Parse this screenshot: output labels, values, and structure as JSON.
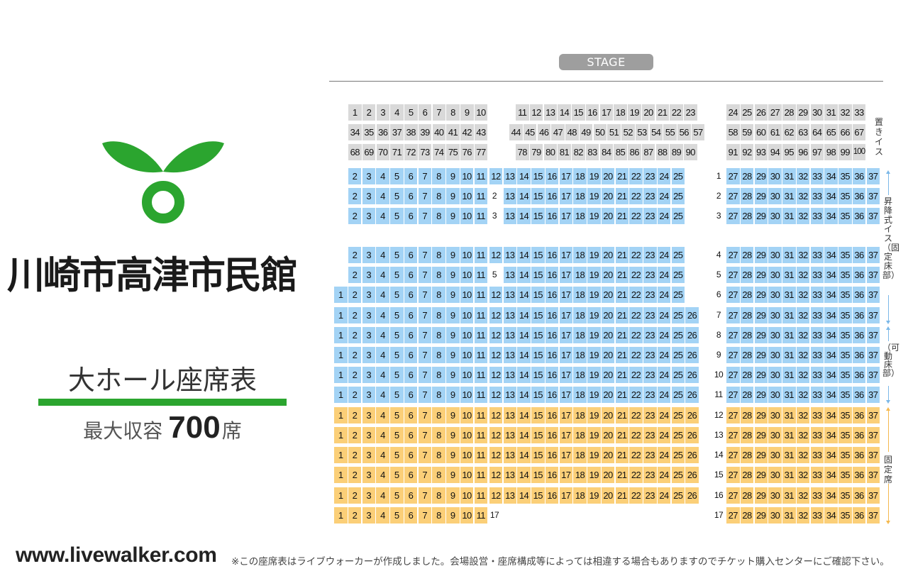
{
  "venue": {
    "name": "川崎市高津市民館",
    "chart_title": "大ホール座席表",
    "capacity_label": "最大収容",
    "capacity_number": "700",
    "capacity_unit": "席"
  },
  "stage_label": "STAGE",
  "legend": {
    "loose": "置きイス",
    "raised": "昇降式イス（固定床部）",
    "movable": "（可動床部）",
    "fixed": "固定席"
  },
  "colors": {
    "loose_seat": "#d9d9d9",
    "raised_seat": "#a3d3f5",
    "fixed_seat": "#fbcf78",
    "logo_green": "#2ba52f",
    "stage": "#9e9e9e"
  },
  "loose_rows": [
    [
      [
        1,
        10
      ],
      [
        11,
        23
      ],
      [
        24,
        33
      ]
    ],
    [
      [
        34,
        43
      ],
      [
        44,
        57
      ],
      [
        58,
        67
      ]
    ],
    [
      [
        68,
        77
      ],
      [
        78,
        90
      ],
      [
        91,
        100
      ]
    ]
  ],
  "rows": [
    {
      "no": "1",
      "type": "raised",
      "left": [
        2,
        11
      ],
      "center": [
        12,
        25
      ],
      "right": [
        27,
        37
      ]
    },
    {
      "no": "2",
      "type": "raised",
      "left": [
        2,
        11
      ],
      "center": [
        13,
        25
      ],
      "right": [
        27,
        37
      ]
    },
    {
      "no": "3",
      "type": "raised",
      "left": [
        2,
        11
      ],
      "center": [
        13,
        25
      ],
      "right": [
        27,
        37
      ]
    },
    {
      "no": "4",
      "type": "raised",
      "left": [
        2,
        11
      ],
      "center": [
        12,
        25
      ],
      "right": [
        27,
        37
      ]
    },
    {
      "no": "5",
      "type": "raised",
      "left": [
        2,
        11
      ],
      "center": [
        13,
        25
      ],
      "right": [
        27,
        37
      ]
    },
    {
      "no": "6",
      "type": "raised",
      "left": [
        1,
        11
      ],
      "center": [
        12,
        25
      ],
      "right": [
        27,
        37
      ]
    },
    {
      "no": "7",
      "type": "raised",
      "left": [
        1,
        11
      ],
      "center": [
        12,
        26
      ],
      "right": [
        27,
        37
      ]
    },
    {
      "no": "8",
      "type": "raised",
      "left": [
        1,
        11
      ],
      "center": [
        12,
        26
      ],
      "right": [
        27,
        37
      ]
    },
    {
      "no": "9",
      "type": "raised",
      "left": [
        1,
        11
      ],
      "center": [
        12,
        26
      ],
      "right": [
        27,
        37
      ]
    },
    {
      "no": "10",
      "type": "raised",
      "left": [
        1,
        11
      ],
      "center": [
        12,
        26
      ],
      "right": [
        27,
        37
      ]
    },
    {
      "no": "11",
      "type": "raised",
      "left": [
        1,
        11
      ],
      "center": [
        12,
        26
      ],
      "right": [
        27,
        37
      ]
    },
    {
      "no": "12",
      "type": "fixed",
      "left": [
        1,
        11
      ],
      "center": [
        12,
        26
      ],
      "right": [
        27,
        37
      ]
    },
    {
      "no": "13",
      "type": "fixed",
      "left": [
        1,
        11
      ],
      "center": [
        12,
        26
      ],
      "right": [
        27,
        37
      ]
    },
    {
      "no": "14",
      "type": "fixed",
      "left": [
        1,
        11
      ],
      "center": [
        12,
        26
      ],
      "right": [
        27,
        37
      ]
    },
    {
      "no": "15",
      "type": "fixed",
      "left": [
        1,
        11
      ],
      "center": [
        12,
        26
      ],
      "right": [
        27,
        37
      ]
    },
    {
      "no": "16",
      "type": "fixed",
      "left": [
        1,
        11
      ],
      "center": [
        12,
        26
      ],
      "right": [
        27,
        37
      ]
    },
    {
      "no": "17",
      "type": "fixed",
      "left": [
        1,
        11
      ],
      "center": null,
      "right": [
        27,
        37
      ]
    }
  ],
  "footer": {
    "url": "www.livewalker.com",
    "disclaimer": "※この座席表はライブウォーカーが作成しました。会場設営・座席構成等によっては相違する場合もありますのでチケット購入センターにご確認下さい。"
  }
}
